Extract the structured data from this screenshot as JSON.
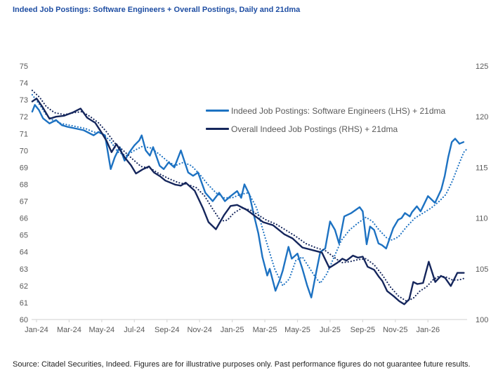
{
  "page": {
    "title": "Indeed Job Postings: Software Engineers + Overall Postings, Daily and 21dma",
    "source": "Source: Citadel Securities, Indeed. Figures are for illustrative purposes only. Past performance figures do not guarantee future results."
  },
  "colors": {
    "title_blue": "#1f4ea3",
    "swe_blue": "#1d72c2",
    "overall_navy": "#15265c",
    "axis_text": "#595959",
    "axis_line": "#d9d9d9"
  },
  "chart_data": {
    "type": "line",
    "title": "Indeed Job Postings: Software Engineers + Overall Postings, Daily and 21dma",
    "x_tick_labels": [
      "Jan-24",
      "Mar-24",
      "May-24",
      "Jul-24",
      "Sep-24",
      "Nov-24",
      "Jan-25",
      "Mar-25",
      "May-25",
      "Jul-25",
      "Sep-25",
      "Nov-25",
      "Jan-26"
    ],
    "x_unit": "months since Jan-24",
    "y_left": {
      "min": 60,
      "max": 75,
      "step": 1,
      "tick_labels": [
        "60",
        "61",
        "62",
        "63",
        "64",
        "65",
        "66",
        "67",
        "68",
        "69",
        "70",
        "71",
        "72",
        "73",
        "74",
        "75"
      ]
    },
    "y_right": {
      "min": 100,
      "max": 125,
      "step": 5,
      "tick_labels": [
        "100",
        "105",
        "110",
        "115",
        "120",
        "125"
      ]
    },
    "legend": [
      {
        "label": "Indeed Job Postings: Software Engineers (LHS) + 21dma",
        "color": "#1d72c2"
      },
      {
        "label": "Overall Indeed Job Postings (RHS) + 21dma",
        "color": "#15265c"
      }
    ],
    "series": [
      {
        "name": "Software Engineers daily (LHS)",
        "axis": "left",
        "style": "solid",
        "color": "#1d72c2",
        "points": [
          [
            -0.26,
            72.3
          ],
          [
            -0.1,
            72.7
          ],
          [
            0.15,
            72.4
          ],
          [
            0.4,
            71.9
          ],
          [
            0.8,
            71.6
          ],
          [
            1.2,
            71.8
          ],
          [
            1.55,
            71.5
          ],
          [
            1.9,
            71.4
          ],
          [
            2.4,
            71.3
          ],
          [
            2.9,
            71.2
          ],
          [
            3.5,
            70.9
          ],
          [
            3.8,
            71.1
          ],
          [
            4.2,
            70.9
          ],
          [
            4.55,
            68.9
          ],
          [
            4.8,
            69.6
          ],
          [
            5.1,
            70.2
          ],
          [
            5.4,
            69.4
          ],
          [
            5.7,
            69.9
          ],
          [
            6.0,
            70.3
          ],
          [
            6.3,
            70.6
          ],
          [
            6.45,
            70.9
          ],
          [
            6.7,
            70.0
          ],
          [
            6.95,
            69.7
          ],
          [
            7.15,
            70.2
          ],
          [
            7.55,
            69.1
          ],
          [
            7.8,
            68.9
          ],
          [
            8.1,
            69.3
          ],
          [
            8.45,
            69.0
          ],
          [
            8.85,
            70.0
          ],
          [
            9.3,
            68.7
          ],
          [
            9.6,
            68.5
          ],
          [
            9.9,
            68.7
          ],
          [
            10.35,
            67.5
          ],
          [
            10.8,
            67.0
          ],
          [
            11.2,
            67.5
          ],
          [
            11.55,
            67.0
          ],
          [
            11.9,
            67.3
          ],
          [
            12.3,
            67.6
          ],
          [
            12.55,
            67.2
          ],
          [
            12.75,
            68.0
          ],
          [
            13.05,
            67.4
          ],
          [
            13.3,
            66.3
          ],
          [
            13.6,
            65.1
          ],
          [
            13.85,
            63.7
          ],
          [
            14.15,
            62.6
          ],
          [
            14.3,
            63.0
          ],
          [
            14.65,
            61.7
          ],
          [
            14.9,
            62.3
          ],
          [
            15.1,
            62.9
          ],
          [
            15.45,
            64.3
          ],
          [
            15.65,
            63.6
          ],
          [
            16.0,
            63.9
          ],
          [
            16.3,
            63.0
          ],
          [
            16.6,
            62.0
          ],
          [
            16.85,
            61.3
          ],
          [
            17.15,
            62.8
          ],
          [
            17.4,
            64.0
          ],
          [
            17.7,
            64.2
          ],
          [
            18.0,
            65.8
          ],
          [
            18.3,
            65.3
          ],
          [
            18.55,
            64.5
          ],
          [
            18.87,
            66.1
          ],
          [
            19.3,
            66.3
          ],
          [
            19.81,
            66.65
          ],
          [
            20.0,
            66.4
          ],
          [
            20.24,
            64.45
          ],
          [
            20.45,
            65.5
          ],
          [
            20.7,
            65.3
          ],
          [
            20.97,
            64.5
          ],
          [
            21.18,
            64.4
          ],
          [
            21.44,
            64.2
          ],
          [
            21.87,
            65.4
          ],
          [
            22.17,
            65.9
          ],
          [
            22.38,
            66.0
          ],
          [
            22.59,
            66.3
          ],
          [
            22.89,
            66.1
          ],
          [
            23.02,
            66.35
          ],
          [
            23.32,
            66.7
          ],
          [
            23.55,
            66.4
          ],
          [
            23.75,
            66.8
          ],
          [
            24.0,
            67.3
          ],
          [
            24.43,
            66.9
          ],
          [
            24.82,
            67.7
          ],
          [
            25.03,
            68.5
          ],
          [
            25.24,
            69.6
          ],
          [
            25.46,
            70.5
          ],
          [
            25.67,
            70.7
          ],
          [
            25.93,
            70.4
          ],
          [
            26.18,
            70.5
          ]
        ]
      },
      {
        "name": "Software Engineers 21dma (LHS)",
        "axis": "left",
        "style": "dotted",
        "color": "#1d72c2",
        "points": [
          [
            -0.26,
            73.3
          ],
          [
            0.2,
            72.7
          ],
          [
            0.6,
            72.1
          ],
          [
            1.0,
            71.8
          ],
          [
            1.5,
            71.6
          ],
          [
            2.0,
            71.5
          ],
          [
            2.5,
            71.4
          ],
          [
            3.0,
            71.3
          ],
          [
            3.5,
            71.1
          ],
          [
            4.0,
            71.0
          ],
          [
            4.5,
            70.6
          ],
          [
            5.0,
            69.9
          ],
          [
            5.5,
            69.7
          ],
          [
            6.0,
            70.0
          ],
          [
            6.5,
            70.25
          ],
          [
            7.0,
            70.15
          ],
          [
            7.5,
            69.8
          ],
          [
            8.0,
            69.4
          ],
          [
            8.5,
            69.1
          ],
          [
            9.0,
            69.3
          ],
          [
            9.5,
            69.1
          ],
          [
            10.0,
            68.6
          ],
          [
            10.5,
            68.0
          ],
          [
            11.0,
            67.5
          ],
          [
            11.5,
            67.2
          ],
          [
            12.0,
            67.2
          ],
          [
            12.5,
            67.4
          ],
          [
            13.0,
            67.5
          ],
          [
            13.5,
            66.6
          ],
          [
            14.0,
            64.9
          ],
          [
            14.6,
            63.0
          ],
          [
            15.1,
            62.0
          ],
          [
            15.5,
            62.4
          ],
          [
            15.9,
            63.5
          ],
          [
            16.3,
            63.7
          ],
          [
            16.7,
            63.1
          ],
          [
            17.1,
            62.5
          ],
          [
            17.4,
            62.15
          ],
          [
            17.8,
            62.7
          ],
          [
            18.2,
            63.6
          ],
          [
            18.7,
            64.7
          ],
          [
            19.2,
            65.3
          ],
          [
            19.7,
            65.7
          ],
          [
            20.2,
            66.05
          ],
          [
            20.6,
            65.8
          ],
          [
            21.0,
            65.3
          ],
          [
            21.5,
            64.8
          ],
          [
            21.8,
            64.7
          ],
          [
            22.2,
            64.9
          ],
          [
            22.7,
            65.5
          ],
          [
            23.2,
            66.0
          ],
          [
            23.7,
            66.3
          ],
          [
            24.2,
            66.6
          ],
          [
            24.7,
            67.0
          ],
          [
            25.1,
            67.4
          ],
          [
            25.5,
            68.2
          ],
          [
            25.9,
            69.2
          ],
          [
            26.2,
            69.9
          ],
          [
            26.4,
            70.1
          ]
        ]
      },
      {
        "name": "Overall postings daily (RHS)",
        "axis": "right",
        "style": "solid",
        "color": "#15265c",
        "points": [
          [
            -0.26,
            121.5
          ],
          [
            0.0,
            121.8
          ],
          [
            0.35,
            121.0
          ],
          [
            0.8,
            119.8
          ],
          [
            1.2,
            120.0
          ],
          [
            1.7,
            120.1
          ],
          [
            2.2,
            120.4
          ],
          [
            2.7,
            120.8
          ],
          [
            3.1,
            119.9
          ],
          [
            3.6,
            119.4
          ],
          [
            4.0,
            118.4
          ],
          [
            4.3,
            117.6
          ],
          [
            4.6,
            116.5
          ],
          [
            4.9,
            117.3
          ],
          [
            5.4,
            116.0
          ],
          [
            5.8,
            115.2
          ],
          [
            6.1,
            114.4
          ],
          [
            6.5,
            114.8
          ],
          [
            6.9,
            115.1
          ],
          [
            7.2,
            114.5
          ],
          [
            7.6,
            114.1
          ],
          [
            7.9,
            113.7
          ],
          [
            8.5,
            113.3
          ],
          [
            8.85,
            113.2
          ],
          [
            9.15,
            113.5
          ],
          [
            9.7,
            112.7
          ],
          [
            10.2,
            111.0
          ],
          [
            10.55,
            109.6
          ],
          [
            11.0,
            108.9
          ],
          [
            11.5,
            110.3
          ],
          [
            11.9,
            111.2
          ],
          [
            12.3,
            111.3
          ],
          [
            12.9,
            110.8
          ],
          [
            13.4,
            110.2
          ],
          [
            13.9,
            109.6
          ],
          [
            14.5,
            109.3
          ],
          [
            15.2,
            108.4
          ],
          [
            15.7,
            108.0
          ],
          [
            16.3,
            107.1
          ],
          [
            16.8,
            106.9
          ],
          [
            17.5,
            106.6
          ],
          [
            17.95,
            105.1
          ],
          [
            18.45,
            105.6
          ],
          [
            18.75,
            106.0
          ],
          [
            19.0,
            105.8
          ],
          [
            19.4,
            106.3
          ],
          [
            19.7,
            106.1
          ],
          [
            20.0,
            106.2
          ],
          [
            20.3,
            105.2
          ],
          [
            20.7,
            104.9
          ],
          [
            21.0,
            104.2
          ],
          [
            21.2,
            103.8
          ],
          [
            21.5,
            102.8
          ],
          [
            21.9,
            102.3
          ],
          [
            22.25,
            101.8
          ],
          [
            22.55,
            101.5
          ],
          [
            22.85,
            102.0
          ],
          [
            23.1,
            103.7
          ],
          [
            23.35,
            103.5
          ],
          [
            23.7,
            103.6
          ],
          [
            24.05,
            105.7
          ],
          [
            24.45,
            103.7
          ],
          [
            24.8,
            104.3
          ],
          [
            25.05,
            104.1
          ],
          [
            25.4,
            103.3
          ],
          [
            25.8,
            104.6
          ],
          [
            26.2,
            104.6
          ]
        ]
      },
      {
        "name": "Overall postings 21dma (RHS)",
        "axis": "right",
        "style": "dotted",
        "color": "#15265c",
        "points": [
          [
            -0.26,
            122.6
          ],
          [
            0.2,
            121.9
          ],
          [
            0.6,
            121.0
          ],
          [
            1.1,
            120.4
          ],
          [
            1.7,
            120.2
          ],
          [
            2.3,
            120.4
          ],
          [
            2.8,
            120.5
          ],
          [
            3.3,
            120.0
          ],
          [
            3.8,
            119.4
          ],
          [
            4.3,
            118.5
          ],
          [
            4.8,
            117.4
          ],
          [
            5.3,
            116.7
          ],
          [
            5.9,
            115.8
          ],
          [
            6.4,
            115.1
          ],
          [
            7.0,
            114.9
          ],
          [
            7.5,
            114.4
          ],
          [
            8.1,
            113.9
          ],
          [
            8.7,
            113.5
          ],
          [
            9.3,
            113.3
          ],
          [
            9.8,
            113.0
          ],
          [
            10.3,
            112.2
          ],
          [
            10.8,
            110.9
          ],
          [
            11.3,
            109.7
          ],
          [
            11.7,
            109.8
          ],
          [
            12.1,
            110.5
          ],
          [
            12.6,
            111.0
          ],
          [
            13.1,
            110.8
          ],
          [
            13.6,
            110.3
          ],
          [
            14.1,
            109.8
          ],
          [
            14.7,
            109.4
          ],
          [
            15.3,
            108.8
          ],
          [
            15.9,
            108.2
          ],
          [
            16.5,
            107.5
          ],
          [
            17.1,
            107.1
          ],
          [
            17.7,
            106.8
          ],
          [
            18.2,
            106.2
          ],
          [
            18.7,
            105.6
          ],
          [
            19.2,
            105.7
          ],
          [
            19.7,
            105.9
          ],
          [
            20.2,
            106.0
          ],
          [
            20.7,
            105.4
          ],
          [
            21.2,
            104.4
          ],
          [
            21.7,
            103.2
          ],
          [
            22.2,
            102.3
          ],
          [
            22.7,
            101.8
          ],
          [
            23.1,
            102.1
          ],
          [
            23.5,
            102.8
          ],
          [
            23.9,
            103.2
          ],
          [
            24.3,
            103.9
          ],
          [
            24.7,
            104.3
          ],
          [
            25.1,
            104.2
          ],
          [
            25.5,
            103.9
          ],
          [
            25.9,
            103.9
          ],
          [
            26.3,
            104.1
          ]
        ]
      }
    ]
  }
}
